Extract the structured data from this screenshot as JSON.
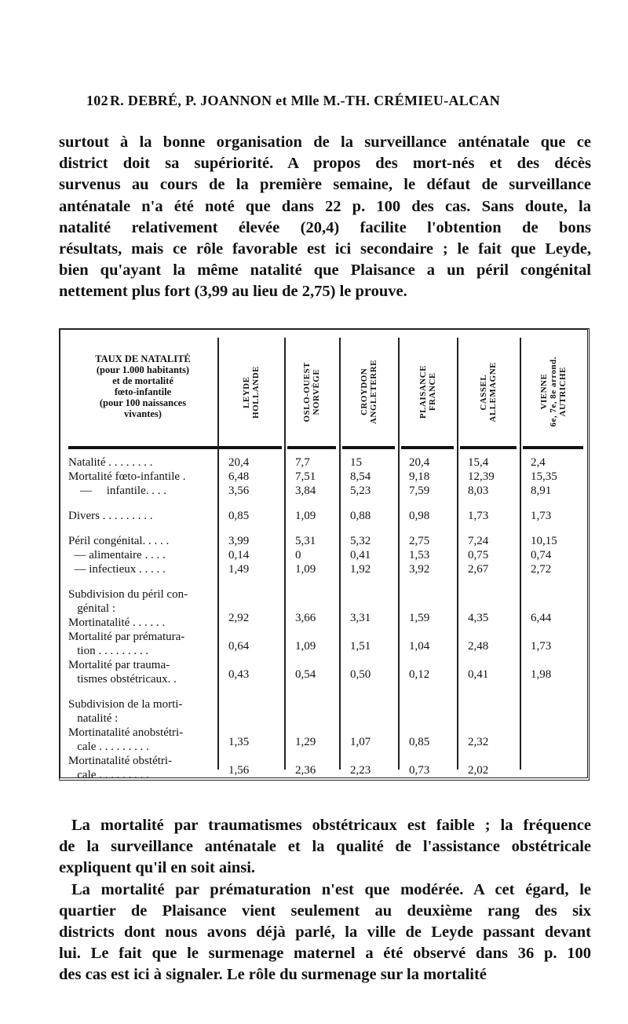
{
  "header": {
    "page_number": "102",
    "authors": "R. DEBRÉ, P. JOANNON et Mlle M.-TH. CRÉMIEU-ALCAN"
  },
  "paragraph_top": [
    "surtout à la bonne organisation de la surveillance anténatale que ce",
    "district doit sa supériorité. A propos des mort-nés et des décès",
    "survenus au cours de la première semaine, le défaut de surveillance",
    "anténatale n'a été noté que dans 22 p. 100 des cas. Sans doute, la",
    "natalité relativement élevée (20,4) facilite l'obtention de bons",
    "résultats, mais ce rôle favorable est ici secondaire ; le fait que Leyde,",
    "bien qu'ayant la même natalité que Plaisance a un péril congénital",
    "nettement plus fort (3,99 au lieu de 2,75) le prouve."
  ],
  "table": {
    "header_label": [
      "TAUX DE NATALITÉ",
      "(pour 1.000 habitants)",
      "et de mortalité",
      "fœto-infantile",
      "(pour 100 naissances",
      "vivantes)"
    ],
    "columns": [
      [
        "LEYDE",
        "HOLLANDE"
      ],
      [
        "OSLO-OUEST",
        "NORVÈGE"
      ],
      [
        "CROYDON",
        "ANGLETERRE"
      ],
      [
        "PLAISANCE",
        "FRANCE"
      ],
      [
        "CASSEL",
        "ALLEMAGNE"
      ],
      [
        "VIENNE",
        "6e, 7e, 8e arrond.",
        "AUTRICHE"
      ]
    ],
    "rows": [
      {
        "label": [
          "Natalité . . . . . . . ."
        ],
        "values": [
          "20,4",
          "7,7",
          "15",
          "20,4",
          "15,4",
          "2,4"
        ]
      },
      {
        "label": [
          "Mortalité fœto-infantile ."
        ],
        "values": [
          "6,48",
          "7,51",
          "8,54",
          "9,18",
          "12,39",
          "15,35"
        ]
      },
      {
        "label": [
          "    —     infantile. . . ."
        ],
        "values": [
          "3,56",
          "3,84",
          "5,23",
          "7,59",
          "8,03",
          "8,91"
        ]
      },
      {
        "label": [
          "Divers . . . . . . . . ."
        ],
        "values": [
          "0,85",
          "1,09",
          "0,88",
          "0,98",
          "1,73",
          "1,73"
        ],
        "gap": true
      },
      {
        "label": [
          "Péril congénital. . . . ."
        ],
        "values": [
          "3,99",
          "5,31",
          "5,32",
          "2,75",
          "7,24",
          "10,15"
        ],
        "gap": true
      },
      {
        "label": [
          "  — alimentaire . . . ."
        ],
        "values": [
          "0,14",
          "0",
          "0,41",
          "1,53",
          "0,75",
          "0,74"
        ]
      },
      {
        "label": [
          "  — infectieux . . . . ."
        ],
        "values": [
          "1,49",
          "1,09",
          "1,92",
          "3,92",
          "2,67",
          "2,72"
        ]
      },
      {
        "label": [
          "Subdivision du péril con-",
          "   génital :",
          "Mortinatalité . . . . . ."
        ],
        "values": [
          "2,92",
          "3,66",
          "3,31",
          "1,59",
          "4,35",
          "6,44"
        ],
        "gap": true
      },
      {
        "label": [
          "Mortalité par prématura-",
          "   tion . . . . . . . . ."
        ],
        "values": [
          "0,64",
          "1,09",
          "1,51",
          "1,04",
          "2,48",
          "1,73"
        ]
      },
      {
        "label": [
          "Mortalité par trauma-",
          "   tismes obstétricaux. ."
        ],
        "values": [
          "0,43",
          "0,54",
          "0,50",
          "0,12",
          "0,41",
          "1,98"
        ]
      },
      {
        "label": [
          "Subdivision de la morti-",
          "   natalité :",
          "Mortinatalité anobstétri-",
          "   cale . . . . . . . . ."
        ],
        "values": [
          "1,35",
          "1,29",
          "1,07",
          "0,85",
          "2,32",
          ""
        ],
        "gap": true
      },
      {
        "label": [
          "Mortinatalité obstétri-",
          "   cale . . . . . . . . ."
        ],
        "values": [
          "1,56",
          "2,36",
          "2,23",
          "0,73",
          "2,02",
          ""
        ]
      }
    ]
  },
  "paragraph_bottom": [
    "La mortalité par traumatismes obstétricaux est faible ; la fréquence",
    "de la surveillance anténatale et la qualité de l'assistance obstétricale",
    "expliquent qu'il en soit ainsi.",
    "La mortalité par prématuration n'est que modérée. A cet égard, le",
    "quartier de Plaisance vient seulement au deuxième rang des six",
    "districts dont nous avons déjà parlé, la ville de Leyde passant devant",
    "lui. Le fait que le surmenage maternel a été observé dans 36 p. 100",
    "des cas est ici à signaler. Le rôle du surmenage sur la mortalité"
  ]
}
